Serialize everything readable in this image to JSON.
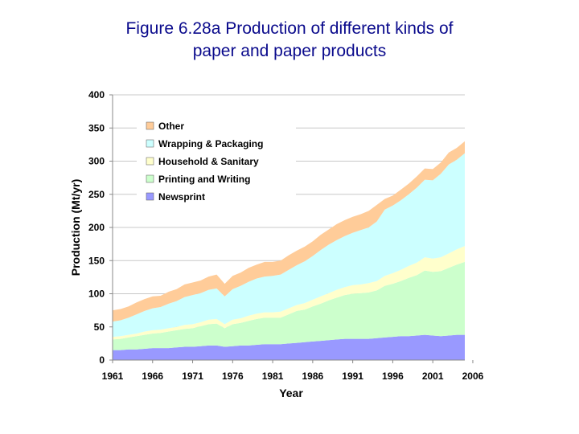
{
  "title_lines": [
    "Figure 6.28a Production of different kinds of",
    "paper and paper products"
  ],
  "chart_data": {
    "type": "area",
    "stacked": true,
    "xlabel": "Year",
    "ylabel": "Production (Mt/yr)",
    "xlim": [
      1961,
      2005
    ],
    "ylim": [
      0,
      400
    ],
    "yticks": [
      0,
      50,
      100,
      150,
      200,
      250,
      300,
      350,
      400
    ],
    "xtick_labels": [
      "1961",
      "1966",
      "1971",
      "1976",
      "1981",
      "1986",
      "1991",
      "1996",
      "2001",
      "2006"
    ],
    "grid": "horizontal",
    "legend_position": "top-left",
    "x": [
      1961,
      1962,
      1963,
      1964,
      1965,
      1966,
      1967,
      1968,
      1969,
      1970,
      1971,
      1972,
      1973,
      1974,
      1975,
      1976,
      1977,
      1978,
      1979,
      1980,
      1981,
      1982,
      1983,
      1984,
      1985,
      1986,
      1987,
      1988,
      1989,
      1990,
      1991,
      1992,
      1993,
      1994,
      1995,
      1996,
      1997,
      1998,
      1999,
      2000,
      2001,
      2002,
      2003,
      2004,
      2005
    ],
    "series": [
      {
        "name": "Newsprint",
        "color": "#9999ff",
        "values": [
          15,
          15,
          16,
          16,
          17,
          18,
          18,
          18,
          19,
          20,
          20,
          21,
          22,
          22,
          20,
          21,
          22,
          22,
          23,
          24,
          24,
          24,
          25,
          26,
          27,
          28,
          29,
          30,
          31,
          32,
          32,
          32,
          32,
          33,
          34,
          35,
          36,
          36,
          37,
          38,
          37,
          36,
          37,
          38,
          38
        ]
      },
      {
        "name": "Printing and Writing",
        "color": "#ccffcc",
        "values": [
          16,
          17,
          18,
          20,
          21,
          22,
          23,
          25,
          26,
          27,
          28,
          30,
          32,
          33,
          28,
          33,
          34,
          37,
          39,
          40,
          40,
          40,
          44,
          48,
          49,
          53,
          56,
          60,
          63,
          66,
          68,
          69,
          70,
          72,
          78,
          80,
          83,
          88,
          91,
          97,
          96,
          98,
          102,
          106,
          110
        ]
      },
      {
        "name": "Household & Sanitary",
        "color": "#ffffcc",
        "values": [
          4,
          4,
          4,
          4,
          5,
          5,
          5,
          5,
          5,
          6,
          6,
          6,
          7,
          7,
          6,
          7,
          7,
          8,
          8,
          8,
          8,
          9,
          9,
          9,
          10,
          10,
          11,
          11,
          12,
          12,
          13,
          13,
          14,
          14,
          15,
          16,
          17,
          18,
          19,
          20,
          20,
          21,
          22,
          23,
          24
        ]
      },
      {
        "name": "Wrapping & Packaging",
        "color": "#ccffff",
        "values": [
          23,
          24,
          26,
          29,
          31,
          33,
          34,
          37,
          39,
          42,
          44,
          44,
          45,
          46,
          42,
          46,
          49,
          51,
          53,
          54,
          55,
          56,
          58,
          60,
          63,
          66,
          70,
          73,
          75,
          77,
          79,
          82,
          84,
          90,
          100,
          102,
          105,
          108,
          113,
          117,
          118,
          126,
          134,
          135,
          140
        ]
      },
      {
        "name": "Other",
        "color": "#ffcc99",
        "values": [
          17,
          17,
          17,
          18,
          18,
          18,
          17,
          18,
          18,
          19,
          19,
          19,
          20,
          21,
          19,
          20,
          20,
          21,
          21,
          22,
          21,
          21,
          22,
          22,
          22,
          22,
          23,
          23,
          24,
          24,
          24,
          24,
          25,
          25,
          16,
          15,
          16,
          16,
          17,
          17,
          17,
          17,
          18,
          18,
          18
        ]
      }
    ]
  }
}
